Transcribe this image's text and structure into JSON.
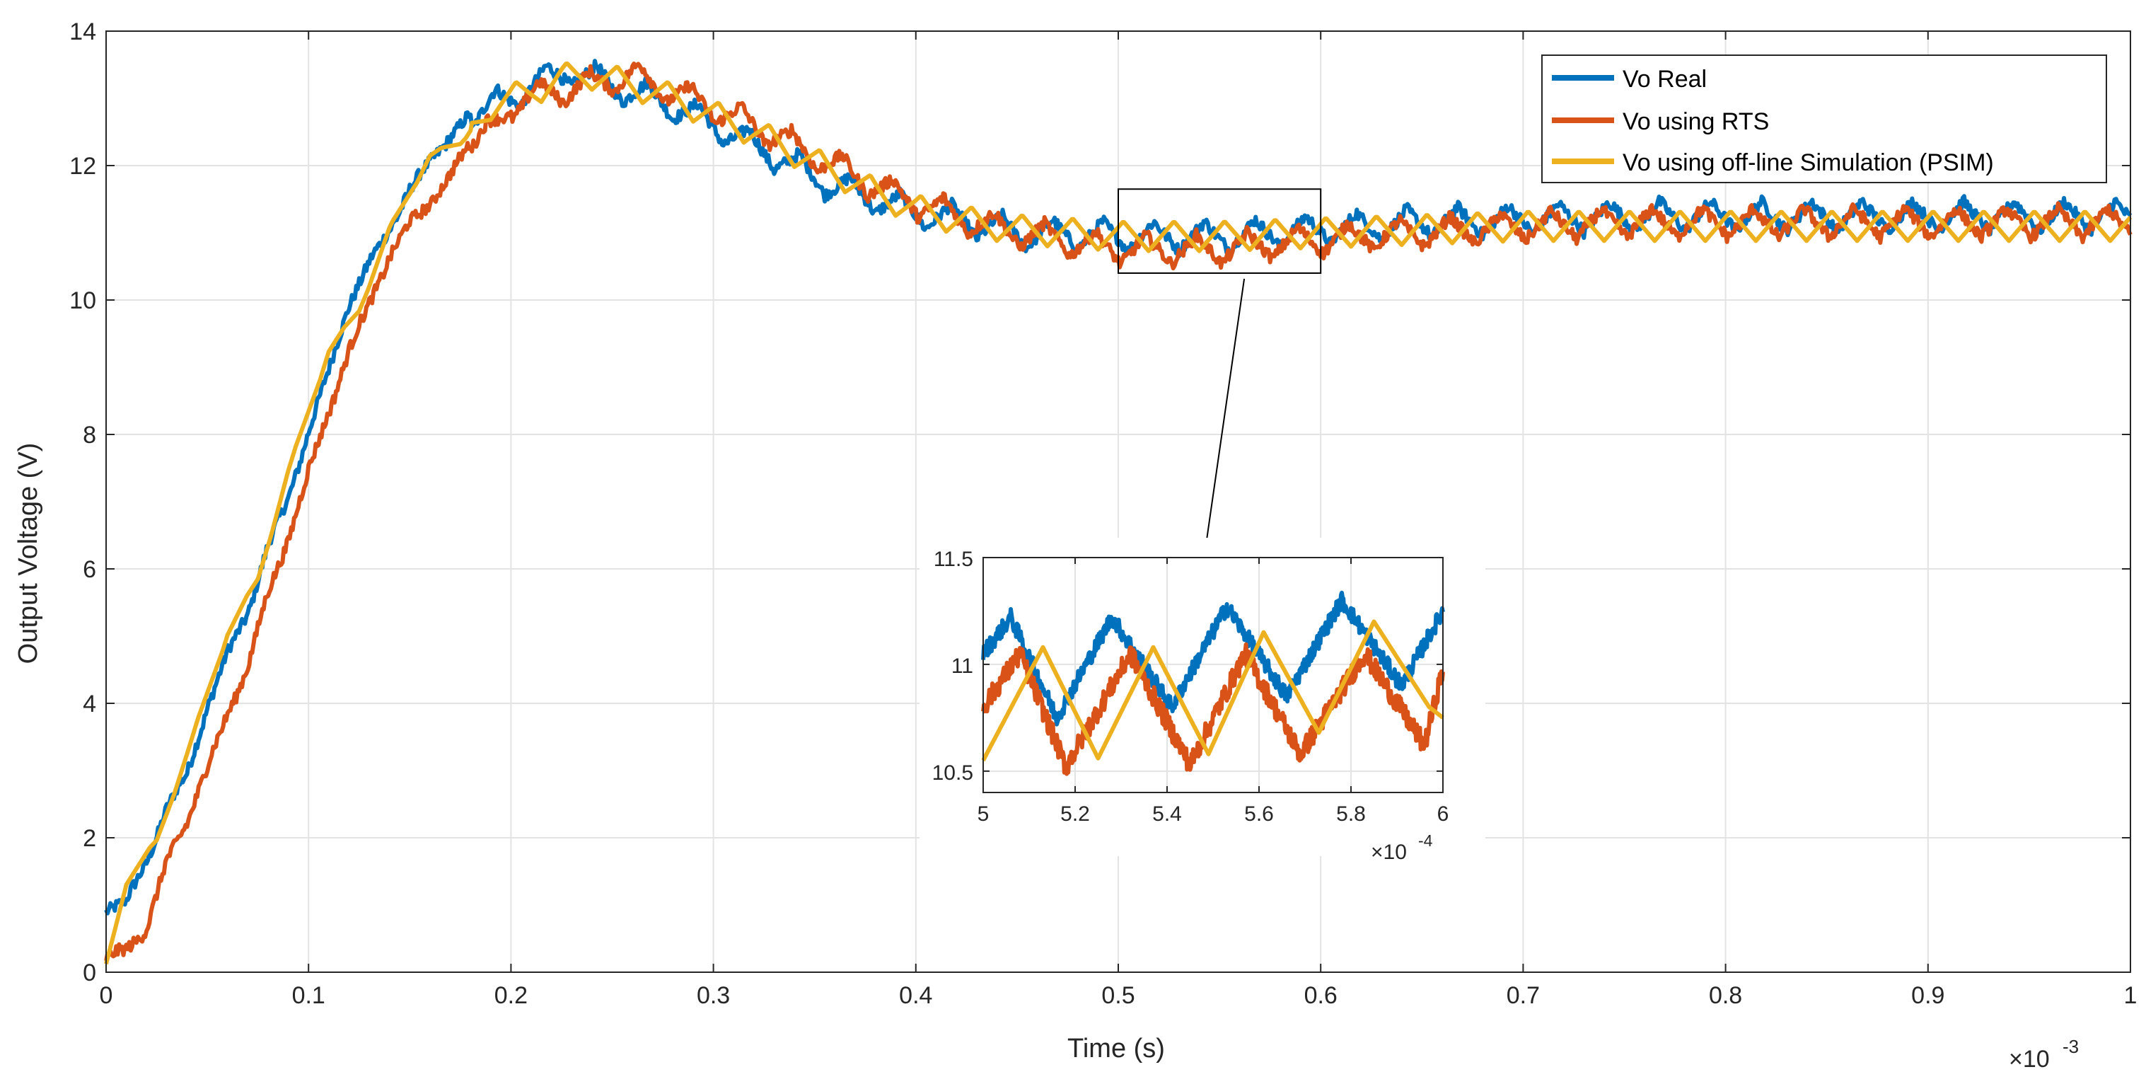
{
  "chart_data": [
    {
      "type": "line",
      "id": "main",
      "title": "",
      "xlabel": "Time (s)",
      "ylabel": "Output Voltage (V)",
      "x_exponent_label": "×10",
      "x_exponent_power": "-3",
      "xlim": [
        0,
        1
      ],
      "ylim": [
        0,
        14
      ],
      "xticks": [
        0,
        0.1,
        0.2,
        0.3,
        0.4,
        0.5,
        0.6,
        0.7,
        0.8,
        0.9,
        1
      ],
      "xtick_labels": [
        "0",
        "0.1",
        "0.2",
        "0.3",
        "0.4",
        "0.5",
        "0.6",
        "0.7",
        "0.8",
        "0.9",
        "1"
      ],
      "yticks": [
        0,
        2,
        4,
        6,
        8,
        10,
        12,
        14
      ],
      "ytick_labels": [
        "0",
        "2",
        "4",
        "6",
        "8",
        "10",
        "12",
        "14"
      ],
      "grid": true,
      "legend_position": "top-right",
      "series": [
        {
          "name": "Vo Real",
          "color": "#0072BD",
          "x": [
            0,
            0.01,
            0.02,
            0.03,
            0.04,
            0.05,
            0.06,
            0.07,
            0.08,
            0.09,
            0.1,
            0.11,
            0.12,
            0.13,
            0.14,
            0.15,
            0.16,
            0.17,
            0.18,
            0.19,
            0.2,
            0.21,
            0.22,
            0.23,
            0.24,
            0.25,
            0.26,
            0.28,
            0.3,
            0.32,
            0.34,
            0.36,
            0.38,
            0.4,
            0.42,
            0.45,
            0.5,
            0.55,
            0.6,
            0.65,
            0.7,
            0.75,
            0.8,
            0.85,
            0.9,
            0.95,
            1.0
          ],
          "y": [
            0.9,
            1.0,
            1.6,
            2.4,
            2.9,
            3.9,
            4.7,
            5.3,
            6.3,
            7.0,
            8.0,
            8.9,
            9.9,
            10.5,
            11.0,
            11.6,
            12.0,
            12.4,
            12.7,
            12.9,
            13.0,
            13.2,
            13.3,
            13.4,
            13.3,
            13.2,
            13.1,
            12.9,
            12.6,
            12.3,
            12.0,
            11.7,
            11.5,
            11.3,
            11.2,
            11.0,
            10.95,
            10.95,
            11.05,
            11.15,
            11.2,
            11.25,
            11.25,
            11.25,
            11.25,
            11.25,
            11.25
          ]
        },
        {
          "name": "Vo using RTS",
          "color": "#D95319",
          "x": [
            0,
            0.01,
            0.02,
            0.03,
            0.04,
            0.05,
            0.06,
            0.07,
            0.08,
            0.09,
            0.1,
            0.11,
            0.12,
            0.13,
            0.14,
            0.15,
            0.16,
            0.17,
            0.18,
            0.19,
            0.2,
            0.21,
            0.22,
            0.23,
            0.24,
            0.25,
            0.26,
            0.28,
            0.3,
            0.32,
            0.34,
            0.36,
            0.38,
            0.4,
            0.42,
            0.45,
            0.5,
            0.55,
            0.6,
            0.65,
            0.7,
            0.75,
            0.8,
            0.85,
            0.9,
            0.95,
            1.0
          ],
          "y": [
            0.15,
            0.3,
            0.6,
            1.6,
            2.2,
            3.0,
            3.8,
            4.5,
            5.6,
            6.4,
            7.4,
            8.3,
            9.2,
            9.9,
            10.6,
            11.1,
            11.4,
            11.8,
            12.3,
            12.5,
            12.9,
            13.0,
            13.1,
            13.15,
            13.2,
            13.3,
            13.35,
            13.1,
            12.85,
            12.6,
            12.3,
            12.0,
            11.7,
            11.45,
            11.25,
            11.0,
            10.75,
            10.75,
            10.9,
            11.0,
            11.1,
            11.15,
            11.15,
            11.15,
            11.15,
            11.15,
            11.15
          ]
        },
        {
          "name": "Vo using off-line Simulation (PSIM)",
          "color": "#EDB120",
          "x": [
            0,
            0.01,
            0.025,
            0.04,
            0.06,
            0.075,
            0.09,
            0.11,
            0.125,
            0.14,
            0.16,
            0.175,
            0.19,
            0.21,
            0.225,
            0.24,
            0.26,
            0.28,
            0.3,
            0.32,
            0.34,
            0.36,
            0.38,
            0.4,
            0.42,
            0.45,
            0.5,
            0.55,
            0.6,
            0.65,
            0.7,
            0.75,
            0.8,
            0.85,
            0.9,
            0.95,
            1.0
          ],
          "y": [
            0.05,
            1.3,
            1.9,
            3.2,
            5.0,
            5.8,
            7.4,
            9.2,
            9.8,
            11.0,
            12.1,
            12.3,
            12.9,
            13.1,
            13.3,
            13.35,
            13.2,
            13.0,
            12.75,
            12.5,
            12.2,
            11.9,
            11.6,
            11.35,
            11.2,
            11.05,
            10.95,
            10.95,
            11.0,
            11.05,
            11.1,
            11.1,
            11.1,
            11.1,
            11.1,
            11.1,
            11.1
          ]
        }
      ],
      "ripple": {
        "x_start": 0.18,
        "period": 0.025,
        "series_amplitudes": [
          0.22,
          0.22,
          0.22
        ],
        "series_phases": [
          0.0,
          0.15,
          0.6
        ],
        "noise": [
          0.09,
          0.09,
          0.0
        ]
      },
      "zoom_region": {
        "x": [
          0.5,
          0.6
        ],
        "y": [
          10.4,
          11.65
        ]
      }
    },
    {
      "type": "line",
      "id": "inset",
      "title": "",
      "xlabel": "",
      "ylabel": "",
      "x_exponent_label": "×10",
      "x_exponent_power": "-4",
      "xlim": [
        5,
        6
      ],
      "ylim": [
        10.4,
        11.5
      ],
      "xticks": [
        5,
        5.2,
        5.4,
        5.6,
        5.8,
        6
      ],
      "xtick_labels": [
        "5",
        "5.2",
        "5.4",
        "5.6",
        "5.8",
        "6"
      ],
      "yticks": [
        10.5,
        11,
        11.5
      ],
      "ytick_labels": [
        "10.5",
        "11",
        "11.5"
      ],
      "grid": true,
      "series": [
        {
          "name": "Vo Real",
          "color": "#0072BD",
          "x": [
            5.0,
            5.06,
            5.16,
            5.28,
            5.41,
            5.53,
            5.66,
            5.78,
            5.91,
            6.0
          ],
          "y": [
            11.05,
            11.22,
            10.75,
            11.22,
            10.8,
            11.27,
            10.85,
            11.3,
            10.9,
            11.25
          ]
        },
        {
          "name": "Vo using RTS",
          "color": "#D95319",
          "x": [
            5.0,
            5.08,
            5.18,
            5.32,
            5.45,
            5.57,
            5.69,
            5.83,
            5.96,
            6.0
          ],
          "y": [
            10.8,
            11.05,
            10.52,
            11.05,
            10.53,
            11.05,
            10.58,
            11.05,
            10.62,
            10.98
          ]
        },
        {
          "name": "Vo using off-line Simulation (PSIM)",
          "color": "#EDB120",
          "x": [
            5.0,
            5.13,
            5.25,
            5.37,
            5.49,
            5.61,
            5.73,
            5.85,
            5.97,
            6.0
          ],
          "y": [
            10.55,
            11.08,
            10.56,
            11.08,
            10.58,
            11.15,
            10.68,
            11.2,
            10.8,
            10.75
          ]
        }
      ],
      "ripple_noise": [
        0.04,
        0.05,
        0.0
      ]
    }
  ]
}
